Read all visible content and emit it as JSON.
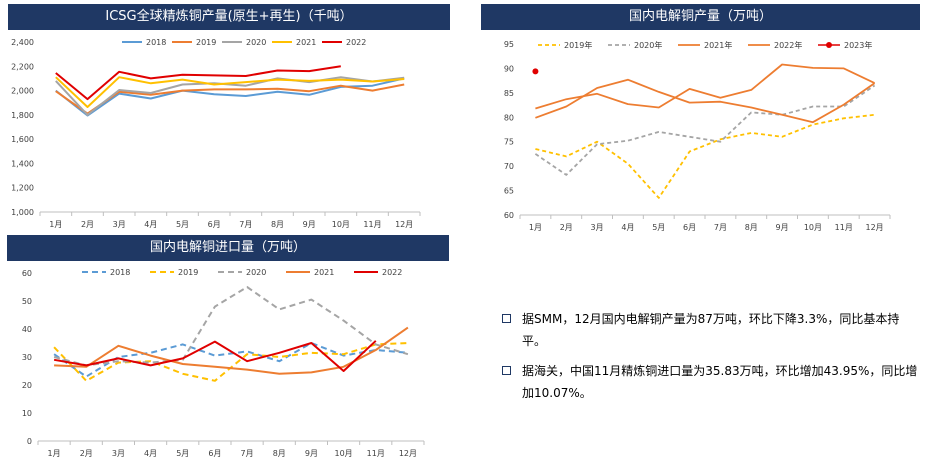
{
  "panels": [
    {
      "title": "ICSG全球精炼铜产量(原生+再生)（千吨）"
    },
    {
      "title": "国内电解铜产量（万吨）"
    },
    {
      "title": "国内电解铜进口量（万吨）"
    }
  ],
  "notes": [
    "据SMM，12月国内电解铜产量为87万吨，环比下降3.3%，同比基本持平。",
    "据海关，中国11月精炼铜进口量为35.83万吨，环比增加43.95%，同比增加10.07%。"
  ],
  "chart_data": [
    {
      "type": "line",
      "title": "ICSG全球精炼铜产量(原生+再生)（千吨）",
      "categories": [
        "1月",
        "2月",
        "3月",
        "4月",
        "5月",
        "6月",
        "7月",
        "8月",
        "9月",
        "10月",
        "11月",
        "12月"
      ],
      "ylim": [
        1000,
        2400
      ],
      "yticks": [
        "1,000",
        "1,200",
        "1,400",
        "1,600",
        "1,800",
        "2,000",
        "2,200",
        "2,400"
      ],
      "legend": "top",
      "series": [
        {
          "name": "2018",
          "color": "#5b9bd5",
          "dash": false,
          "values": [
            2000,
            1795,
            1975,
            1935,
            2000,
            1970,
            1955,
            1990,
            1965,
            2030,
            2040,
            2100
          ]
        },
        {
          "name": "2019",
          "color": "#ed7d31",
          "dash": false,
          "values": [
            1995,
            1810,
            1990,
            1965,
            2000,
            2010,
            2010,
            2015,
            1995,
            2040,
            2000,
            2050
          ]
        },
        {
          "name": "2020",
          "color": "#a5a5a5",
          "dash": false,
          "values": [
            2080,
            1800,
            2005,
            1980,
            2050,
            2060,
            2040,
            2100,
            2070,
            2110,
            2075,
            2105
          ]
        },
        {
          "name": "2021",
          "color": "#ffc000",
          "dash": false,
          "values": [
            2110,
            1865,
            2110,
            2060,
            2090,
            2050,
            2070,
            2090,
            2080,
            2090,
            2075,
            2095
          ]
        },
        {
          "name": "2022",
          "color": "#e00000",
          "dash": false,
          "values": [
            2145,
            1930,
            2155,
            2100,
            2130,
            2125,
            2120,
            2165,
            2160,
            2200,
            null,
            null
          ]
        }
      ]
    },
    {
      "type": "line",
      "title": "国内电解铜产量（万吨）",
      "categories": [
        "1月",
        "2月",
        "3月",
        "4月",
        "5月",
        "6月",
        "7月",
        "8月",
        "9月",
        "10月",
        "11月",
        "12月"
      ],
      "ylim": [
        60,
        95
      ],
      "yticks": [
        "60",
        "65",
        "70",
        "75",
        "80",
        "85",
        "90",
        "95"
      ],
      "legend": "top",
      "series": [
        {
          "name": "2019年",
          "color": "#ffc000",
          "dash": true,
          "values": [
            73.5,
            72,
            75,
            70.5,
            63.5,
            73,
            75.5,
            76.8,
            76,
            78.5,
            79.8,
            80.5
          ]
        },
        {
          "name": "2020年",
          "color": "#a5a5a5",
          "dash": true,
          "values": [
            72.5,
            68.2,
            74.5,
            75.2,
            77,
            76,
            75,
            81,
            80.5,
            82.2,
            82.2,
            86.5
          ]
        },
        {
          "name": "2021年",
          "color": "#ed7d31",
          "dash": false,
          "values": [
            79.9,
            82.2,
            86,
            87.7,
            85.2,
            83,
            83.2,
            82,
            80.5,
            79,
            82.6,
            87
          ]
        },
        {
          "name": "2022年",
          "color": "#ed7d31",
          "dash": false,
          "values": [
            81.8,
            83.7,
            84.8,
            82.7,
            82,
            85.8,
            84,
            85.6,
            90.8,
            90.1,
            90,
            87
          ]
        },
        {
          "name": "2023年",
          "color": "#e00000",
          "marker": true,
          "values": [
            89.4,
            null,
            null,
            null,
            null,
            null,
            null,
            null,
            null,
            null,
            null,
            null
          ]
        }
      ]
    },
    {
      "type": "line",
      "title": "国内电解铜进口量（万吨）",
      "categories": [
        "1月",
        "2月",
        "3月",
        "4月",
        "5月",
        "6月",
        "7月",
        "8月",
        "9月",
        "10月",
        "11月",
        "12月"
      ],
      "ylim": [
        0,
        60
      ],
      "yticks": [
        "0",
        "10",
        "20",
        "30",
        "40",
        "50",
        "60"
      ],
      "legend": "top",
      "series": [
        {
          "name": "2018",
          "color": "#5b9bd5",
          "dash": true,
          "values": [
            31,
            23,
            30,
            31.5,
            34.5,
            30.5,
            32,
            28.5,
            35,
            30.5,
            32.5,
            31.5
          ]
        },
        {
          "name": "2019",
          "color": "#ffc000",
          "dash": true,
          "values": [
            33.5,
            21.5,
            28,
            28.5,
            24,
            21.5,
            31,
            30,
            31.5,
            31,
            34.5,
            35
          ]
        },
        {
          "name": "2020",
          "color": "#a5a5a5",
          "dash": true,
          "values": [
            30,
            27,
            28.5,
            28,
            29,
            48,
            55,
            47,
            50.5,
            43,
            34.5,
            31
          ]
        },
        {
          "name": "2021",
          "color": "#ed7d31",
          "dash": false,
          "values": [
            27,
            26.5,
            34,
            30.5,
            27.5,
            26.5,
            25.5,
            24,
            24.5,
            26.5,
            32.5,
            40.5
          ]
        },
        {
          "name": "2022",
          "color": "#e00000",
          "dash": false,
          "values": [
            29,
            27,
            29.5,
            27,
            29.5,
            35.5,
            28.5,
            31.5,
            35,
            25,
            35.8,
            null
          ]
        }
      ]
    }
  ]
}
